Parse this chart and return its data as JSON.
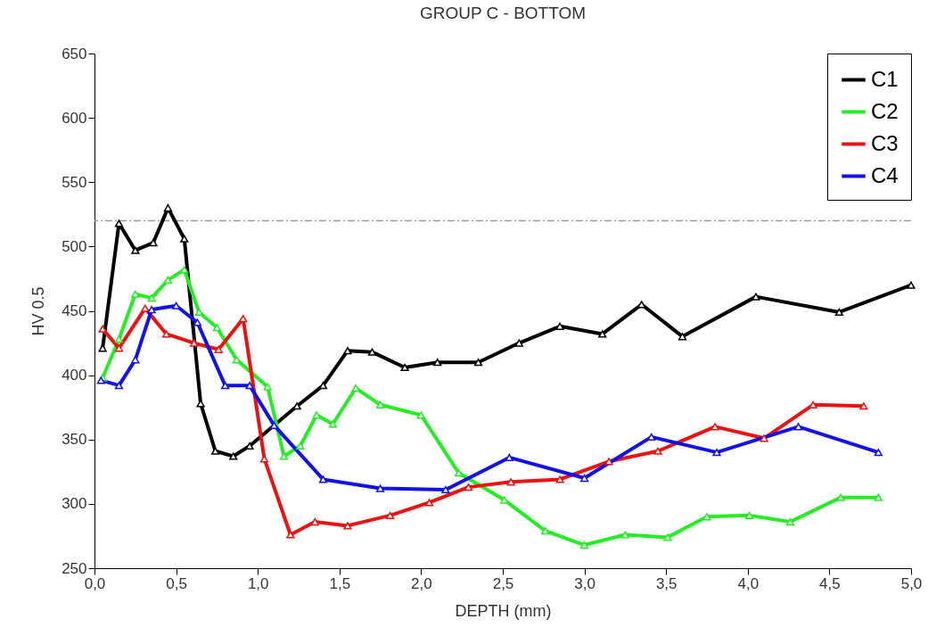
{
  "chart_data": {
    "type": "line",
    "title": "GROUP C - BOTTOM",
    "xlabel": "DEPTH (mm)",
    "ylabel": "HV 0.5",
    "xlim": [
      0,
      5
    ],
    "xticks": [
      {
        "value": 0,
        "label": "0,0"
      },
      {
        "value": 0.5,
        "label": "0,5"
      },
      {
        "value": 1,
        "label": "1,0"
      },
      {
        "value": 1.5,
        "label": "1,5"
      },
      {
        "value": 2,
        "label": "2,0"
      },
      {
        "value": 2.5,
        "label": "2,5"
      },
      {
        "value": 3,
        "label": "3,0"
      },
      {
        "value": 3.5,
        "label": "3,5"
      },
      {
        "value": 4,
        "label": "4,0"
      },
      {
        "value": 4.5,
        "label": "4,5"
      },
      {
        "value": 5,
        "label": "5,0"
      }
    ],
    "ylim": [
      250,
      650
    ],
    "yticks": [
      250,
      300,
      350,
      400,
      450,
      500,
      550,
      600,
      650
    ],
    "legend": "top right",
    "marker": "triangle",
    "line_style": "solid",
    "ref_lines": [
      {
        "axis": "y",
        "value": 520,
        "color": "#999999",
        "line_style": "dashed"
      }
    ],
    "series": [
      {
        "name": "C1",
        "color": "#000000",
        "x": [
          0.05,
          0.15,
          0.25,
          0.36,
          0.45,
          0.55,
          0.65,
          0.74,
          0.85,
          0.95,
          1.24,
          1.4,
          1.55,
          1.7,
          1.9,
          2.1,
          2.35,
          2.6,
          2.85,
          3.11,
          3.35,
          3.6,
          4.05,
          4.56,
          5.0
        ],
        "values": [
          421,
          518,
          497,
          503,
          530,
          506,
          378,
          341,
          337,
          345,
          376,
          392,
          419,
          418,
          406,
          410,
          410,
          425,
          438,
          432,
          455,
          430,
          461,
          449,
          470
        ]
      },
      {
        "name": "C2",
        "color": "#22ee22",
        "x": [
          0.05,
          0.15,
          0.25,
          0.35,
          0.45,
          0.55,
          0.64,
          0.75,
          0.87,
          1.06,
          1.16,
          1.26,
          1.36,
          1.46,
          1.6,
          1.75,
          2.0,
          2.23,
          2.51,
          2.76,
          3.0,
          3.25,
          3.51,
          3.75,
          4.01,
          4.26,
          4.57,
          4.8
        ],
        "values": [
          398,
          428,
          463,
          460,
          474,
          482,
          449,
          437,
          412,
          391,
          337,
          345,
          369,
          362,
          390,
          377,
          369,
          324,
          303,
          279,
          268,
          276,
          274,
          290,
          291,
          286,
          305,
          305
        ]
      },
      {
        "name": "C3",
        "color": "#ee1111",
        "x": [
          0.05,
          0.15,
          0.31,
          0.44,
          0.61,
          0.76,
          0.91,
          1.04,
          1.2,
          1.35,
          1.55,
          1.81,
          2.05,
          2.29,
          2.55,
          2.85,
          3.15,
          3.45,
          3.8,
          4.1,
          4.4,
          4.71
        ],
        "values": [
          436,
          421,
          452,
          432,
          425,
          420,
          444,
          335,
          276,
          286,
          283,
          291,
          301,
          313,
          317,
          319,
          333,
          341,
          360,
          351,
          377,
          376
        ]
      },
      {
        "name": "C4",
        "color": "#1111ee",
        "x": [
          0.04,
          0.15,
          0.25,
          0.35,
          0.5,
          0.63,
          0.8,
          0.95,
          1.1,
          1.4,
          1.75,
          2.15,
          2.54,
          3.0,
          3.41,
          3.81,
          4.31,
          4.8
        ],
        "values": [
          396,
          392,
          412,
          451,
          454,
          441,
          392,
          392,
          361,
          319,
          312,
          311,
          336,
          320,
          352,
          340,
          360,
          340
        ]
      }
    ]
  }
}
